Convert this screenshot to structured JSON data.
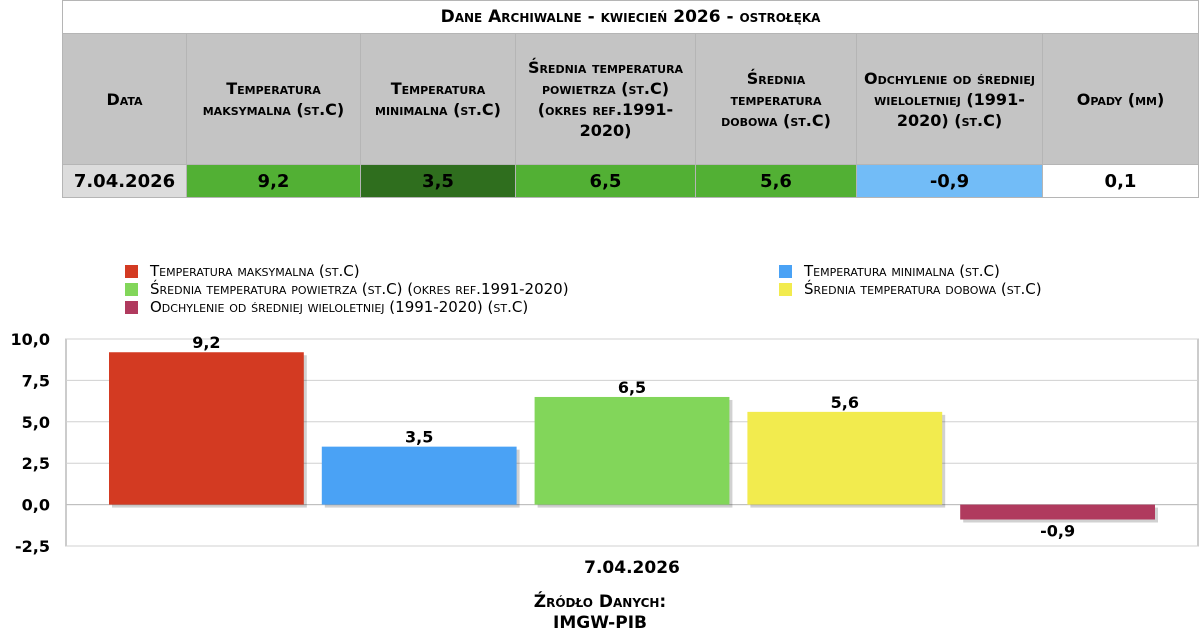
{
  "table": {
    "title": "Dane Archiwalne - kwiecień 2026 - ostrołęka",
    "headers": [
      "Data",
      "Temperatura maksymalna (st.C)",
      "Temperatura minimalna (st.C)",
      "Średnia temperatura powietrza (st.C) (okres ref.1991-2020)",
      "Średnia temperatura dobowa (st.C)",
      "Odchylenie od średniej wieloletniej (1991-2020) (st.C)",
      "Opady (mm)"
    ],
    "row": [
      "7.04.2026",
      "9,2",
      "3,5",
      "6,5",
      "5,6",
      "-0,9",
      "0,1"
    ],
    "cell_colors": [
      "#dcdcdc",
      "#52b034",
      "#2f6e1e",
      "#52b034",
      "#52b034",
      "#72bcf7",
      "#ffffff"
    ]
  },
  "legend": [
    {
      "label": "Temperatura maksymalna (st.C)",
      "color": "#d33a22"
    },
    {
      "label": "Temperatura minimalna  (st.C)",
      "color": "#4aa2f5"
    },
    {
      "label": "Średnia temperatura powietrza  (st.C) (okres ref.1991-2020)",
      "color": "#82d65a"
    },
    {
      "label": "Średnia temperatura dobowa  (st.C)",
      "color": "#f2eb4e"
    },
    {
      "label": "Odchylenie od średniej wieloletniej (1991-2020) (st.C)",
      "color": "#b03a5e"
    }
  ],
  "chart_data": {
    "type": "bar",
    "categories": [
      "7.04.2026"
    ],
    "series": [
      {
        "name": "Temperatura maksymalna (st.C)",
        "values": [
          9.2
        ],
        "label": "9,2",
        "color": "#d33a22"
      },
      {
        "name": "Temperatura minimalna  (st.C)",
        "values": [
          3.5
        ],
        "label": "3,5",
        "color": "#4aa2f5"
      },
      {
        "name": "Średnia temperatura powietrza  (st.C) (okres ref.1991-2020)",
        "values": [
          6.5
        ],
        "label": "6,5",
        "color": "#82d65a"
      },
      {
        "name": "Średnia temperatura dobowa  (st.C)",
        "values": [
          5.6
        ],
        "label": "5,6",
        "color": "#f2eb4e"
      },
      {
        "name": "Odchylenie od średniej wieloletniej (1991-2020) (st.C)",
        "values": [
          -0.9
        ],
        "label": "-0,9",
        "color": "#b03a5e"
      }
    ],
    "ylim": [
      -2.5,
      10
    ],
    "yticks": [
      10,
      7.5,
      5,
      2.5,
      0,
      -2.5
    ],
    "ytick_labels": [
      "10,0",
      "7,5",
      "5,0",
      "2,5",
      "0,0",
      "-2,5"
    ],
    "grid": true,
    "legend_position": "top"
  },
  "footer": {
    "line1": "Źródło Danych:",
    "line2": "IMGW-PIB"
  }
}
